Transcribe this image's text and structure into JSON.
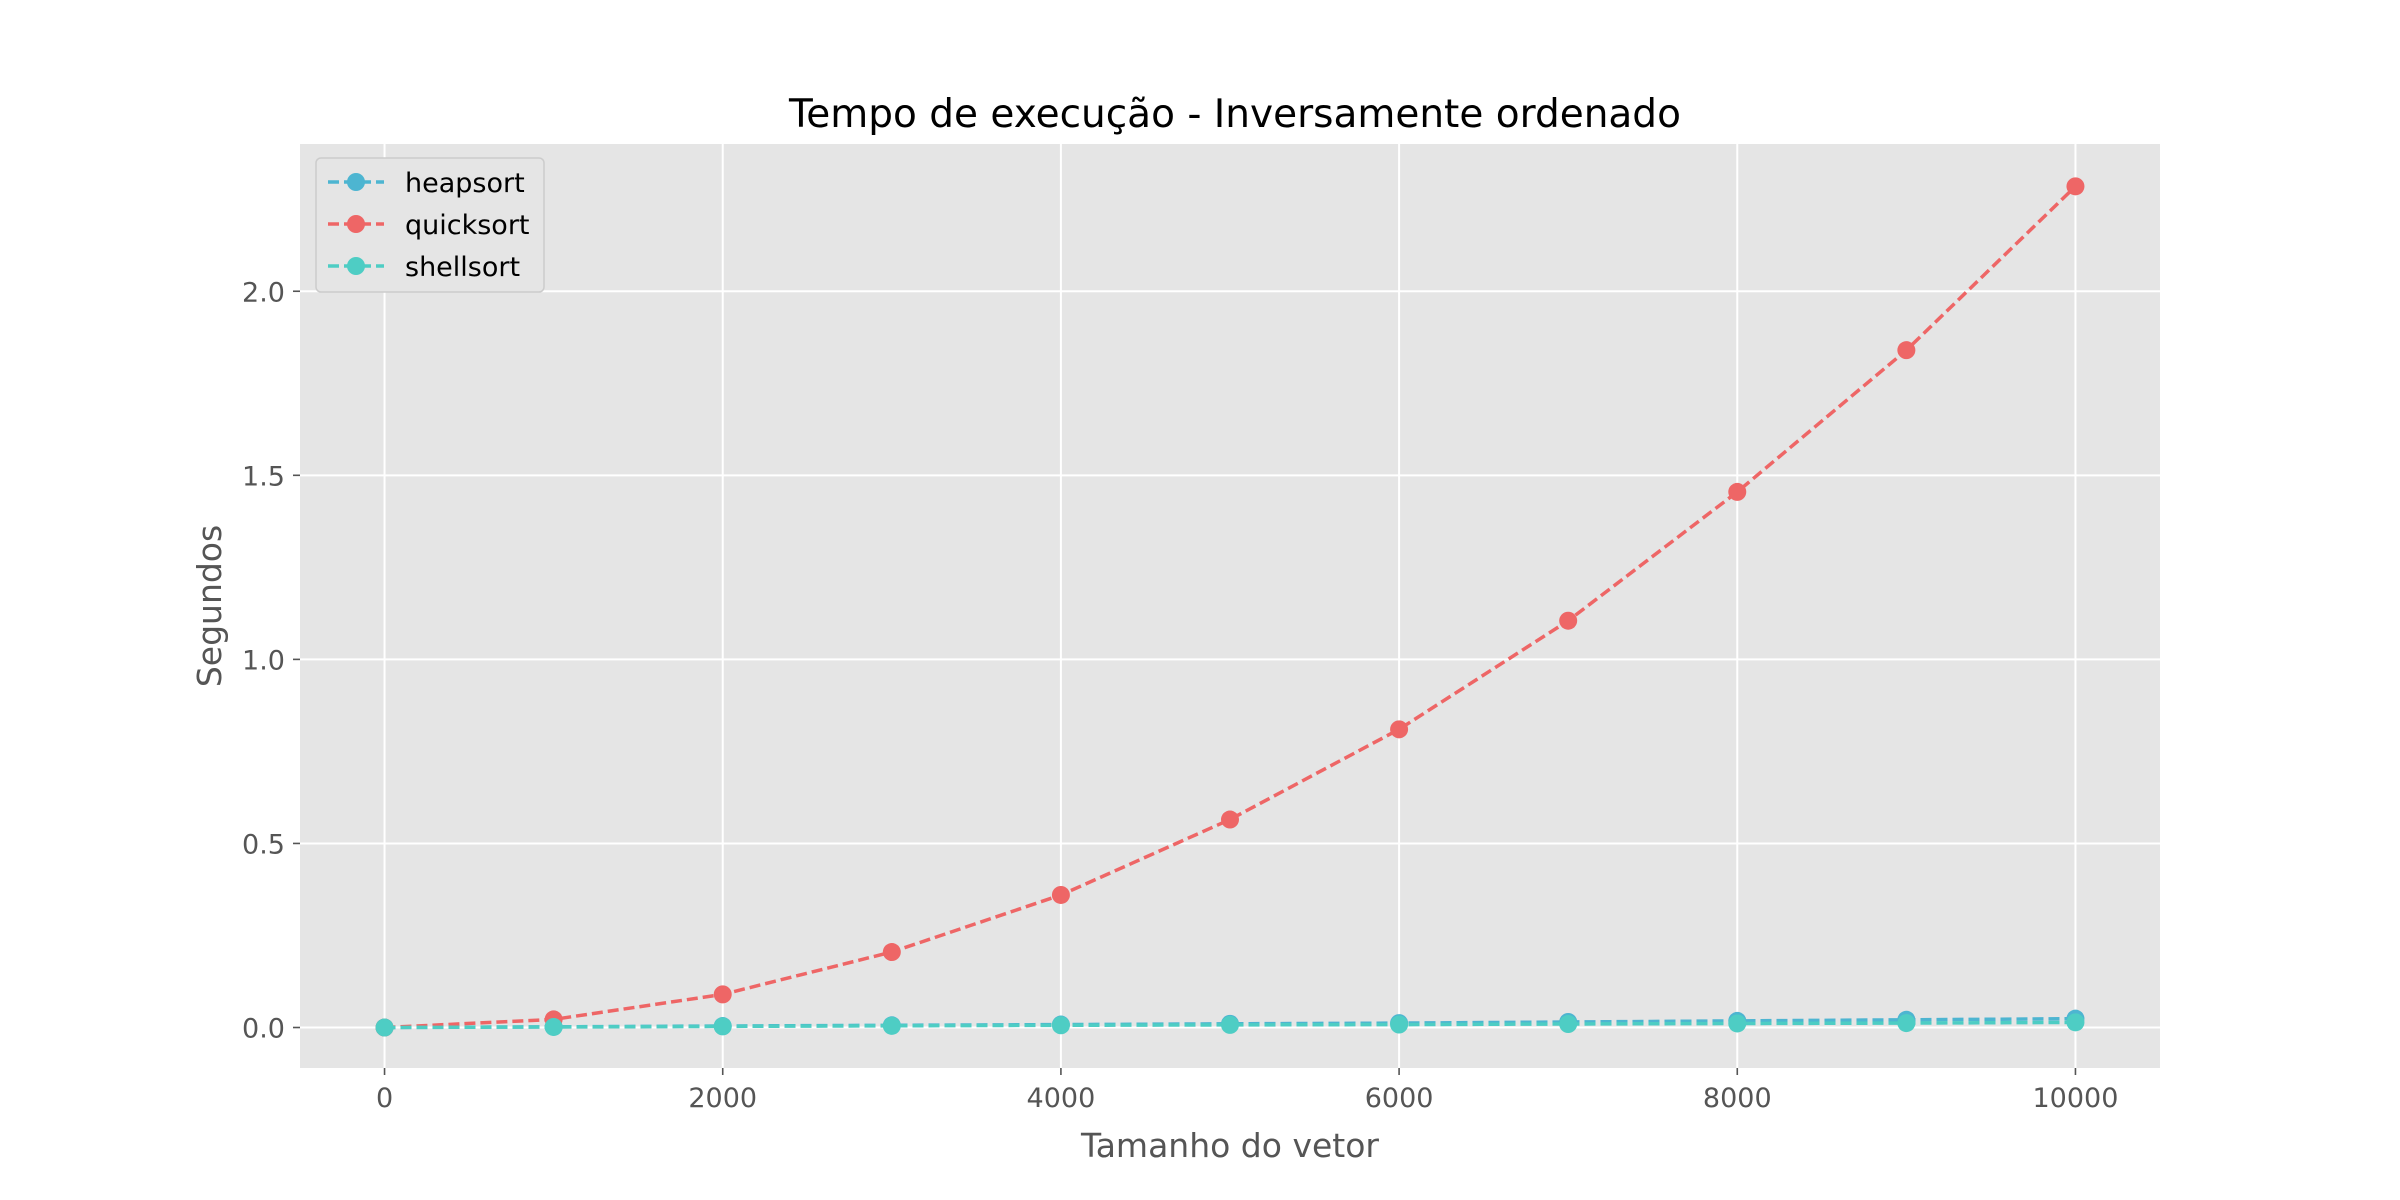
{
  "chart_data": {
    "type": "line",
    "title": "Tempo de execução - Inversamente ordenado",
    "xlabel": "Tamanho do vetor",
    "ylabel": "Segundos",
    "xlim": [
      -500,
      10500
    ],
    "ylim": [
      -0.11,
      2.4
    ],
    "xticks": [
      0,
      2000,
      4000,
      6000,
      8000,
      10000
    ],
    "xtick_labels": [
      "0",
      "2000",
      "4000",
      "6000",
      "8000",
      "10000"
    ],
    "yticks": [
      0.0,
      0.5,
      1.0,
      1.5,
      2.0
    ],
    "ytick_labels": [
      "0.0",
      "0.5",
      "1.0",
      "1.5",
      "2.0"
    ],
    "grid": true,
    "legend_position": "top-left",
    "x": [
      0,
      1000,
      2000,
      3000,
      4000,
      5000,
      6000,
      7000,
      8000,
      9000,
      10000
    ],
    "series": [
      {
        "name": "heapsort",
        "color": "#4db5d1",
        "values": [
          0.0,
          0.002,
          0.004,
          0.006,
          0.008,
          0.01,
          0.012,
          0.015,
          0.018,
          0.021,
          0.024
        ]
      },
      {
        "name": "quicksort",
        "color": "#ee6666",
        "values": [
          0.0,
          0.022,
          0.09,
          0.205,
          0.36,
          0.565,
          0.81,
          1.105,
          1.455,
          1.84,
          2.285
        ]
      },
      {
        "name": "shellsort",
        "color": "#4ecdc4",
        "values": [
          0.0,
          0.0015,
          0.003,
          0.0045,
          0.006,
          0.007,
          0.008,
          0.0095,
          0.011,
          0.012,
          0.014
        ]
      }
    ]
  }
}
